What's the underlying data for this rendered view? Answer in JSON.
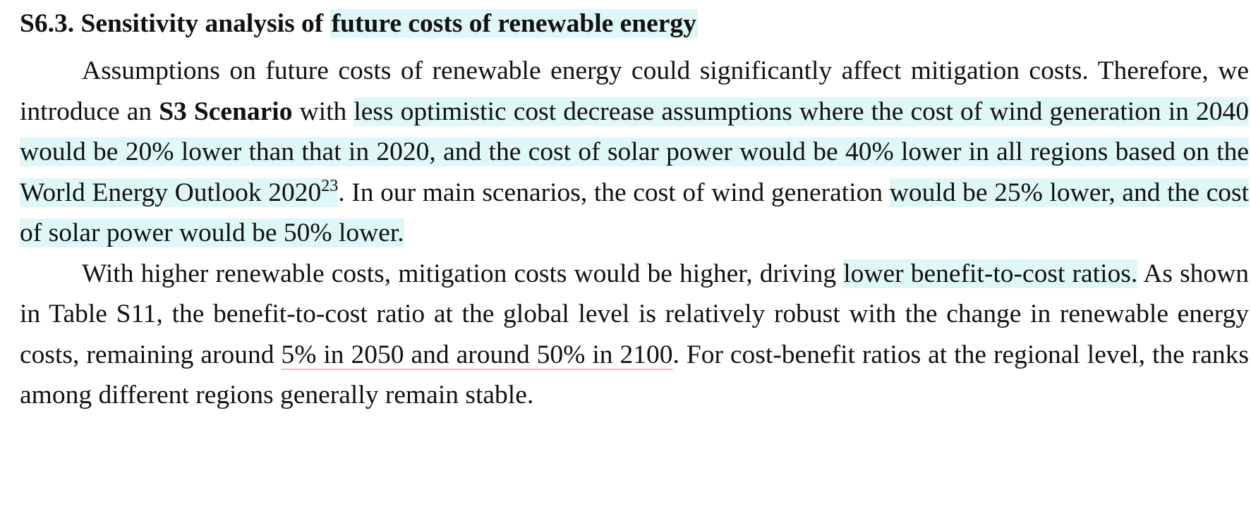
{
  "section": {
    "number": "S6.3.",
    "title_plain": "Sensitivity analysis of",
    "title_highlight": "future costs of renewable energy"
  },
  "paragraph_1": {
    "s1": "Assumptions on future costs of renewable energy could significantly affect mitigation costs. Therefore, we introduce an",
    "scenario_name": "S3 Scenario",
    "s2": "with",
    "h1": "less optimistic cost decrease assumptions where the cost of wind generation in 2040 would be 20% lower than that in 2020, and the cost of solar power would be 40% lower in all regions based on the World Energy Outlook 2020",
    "citation": "23",
    "s3": ". In our main scenarios, the cost of wind generation",
    "h2": "would be 25% lower, and the cost of solar power would be 50% lower."
  },
  "paragraph_2": {
    "s1": "With higher renewable costs, mitigation costs would be higher, driving",
    "h1": "lower benefit-to-cost ratios.",
    "s2": "As shown in Table S11, the benefit-to-cost ratio at the global level is relatively robust with the change in renewable energy costs, remaining around",
    "u1": "5% in 2050 and around 50% in 2100",
    "s3": ". For cost-benefit ratios at the regional level, the ranks among different regions generally remain stable."
  }
}
